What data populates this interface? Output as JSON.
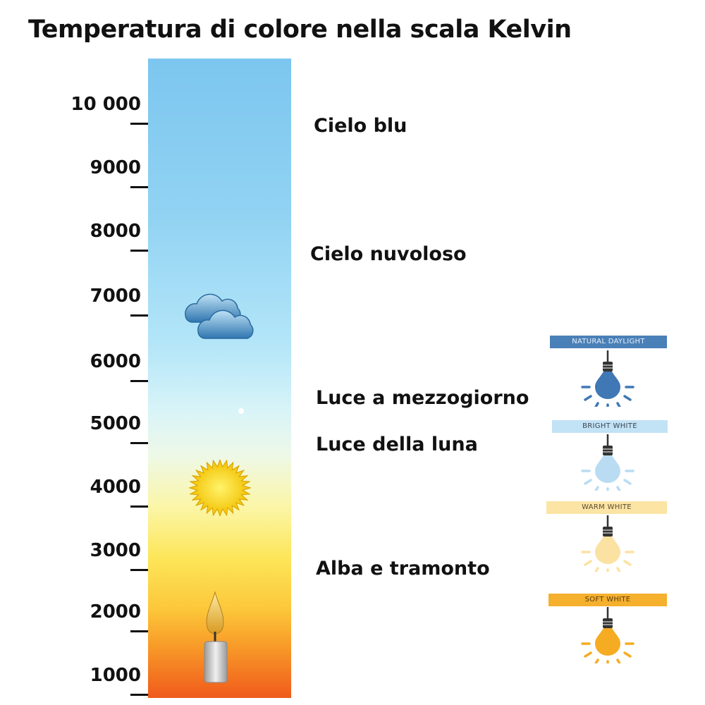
{
  "title": "Temperatura di colore nella scala Kelvin",
  "scale": {
    "ticks": [
      "10 000",
      "9000",
      "8000",
      "7000",
      "6000",
      "5000",
      "4000",
      "3000",
      "2000",
      "1000"
    ]
  },
  "labels": {
    "cielo_blu": "Cielo blu",
    "cielo_nuvoloso": "Cielo nuvoloso",
    "mezzogiorno": "Luce a mezzogiorno",
    "luna": "Luce della luna",
    "alba": "Alba e tramonto"
  },
  "bulbs": [
    {
      "label": "NATURAL DAYLIGHT",
      "color": "#3f78b5",
      "banner": "#4a80b8",
      "text": "#e8f0f8"
    },
    {
      "label": "BRIGHT WHITE",
      "color": "#b9dcf2",
      "banner": "#c2e2f6",
      "text": "#3a4650"
    },
    {
      "label": "WARM WHITE",
      "color": "#fbe2a2",
      "banner": "#fbe4a4",
      "text": "#5a4a30"
    },
    {
      "label": "SOFT WHITE",
      "color": "#f5ac22",
      "banner": "#f5b02e",
      "text": "#5a3a10"
    }
  ]
}
